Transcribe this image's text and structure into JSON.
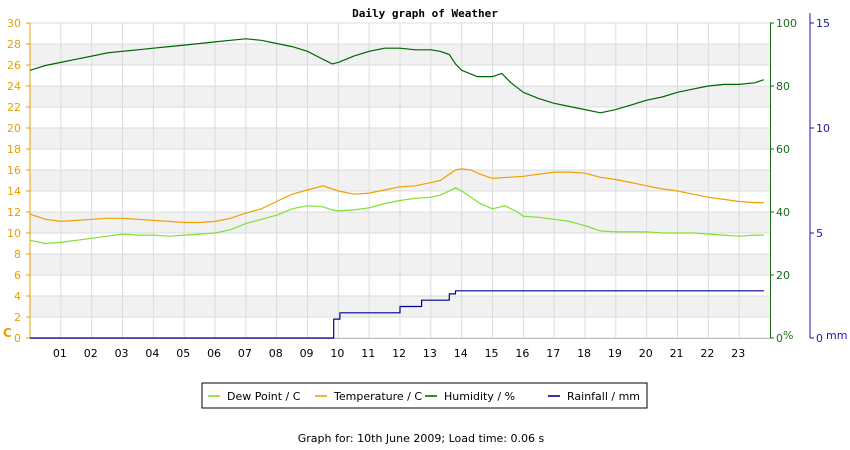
{
  "chart_data": {
    "type": "line",
    "title": "Daily graph of Weather",
    "x_ticks": [
      "01",
      "02",
      "03",
      "04",
      "05",
      "06",
      "07",
      "08",
      "09",
      "10",
      "11",
      "12",
      "13",
      "14",
      "15",
      "16",
      "17",
      "18",
      "19",
      "20",
      "21",
      "22",
      "23"
    ],
    "xlim": [
      0,
      24
    ],
    "left_axis": {
      "unit": "C",
      "ylim": [
        0,
        30
      ],
      "ticks": [
        0,
        2,
        4,
        6,
        8,
        10,
        12,
        14,
        16,
        18,
        20,
        22,
        24,
        26,
        28,
        30
      ]
    },
    "middle_axis": {
      "unit": "%",
      "ylim": [
        0,
        100
      ],
      "ticks": [
        0,
        20,
        40,
        60,
        80,
        100
      ]
    },
    "right_axis": {
      "unit": "mm",
      "ylim": [
        0,
        15
      ],
      "ticks": [
        0,
        5,
        10,
        15
      ]
    },
    "grid": true,
    "legend_position": "bottom",
    "series": [
      {
        "name": "Dew Point / C",
        "axis": "left",
        "color": "#7ee030",
        "x": [
          0,
          0.5,
          1,
          1.5,
          2,
          2.5,
          3,
          3.5,
          4,
          4.5,
          5,
          5.5,
          6,
          6.5,
          7,
          7.5,
          8,
          8.5,
          9,
          9.5,
          9.8,
          10,
          10.5,
          11,
          11.5,
          12,
          12.5,
          13,
          13.3,
          13.6,
          13.8,
          14,
          14.3,
          14.6,
          15,
          15.4,
          15.8,
          16,
          16.5,
          17,
          17.5,
          18,
          18.5,
          19,
          19.5,
          20,
          20.5,
          21,
          21.5,
          22,
          22.5,
          23,
          23.5,
          23.8
        ],
        "y": [
          9.3,
          9.0,
          9.1,
          9.3,
          9.5,
          9.7,
          9.9,
          9.8,
          9.8,
          9.7,
          9.8,
          9.9,
          10.0,
          10.3,
          10.9,
          11.3,
          11.7,
          12.3,
          12.6,
          12.5,
          12.2,
          12.1,
          12.2,
          12.4,
          12.8,
          13.1,
          13.3,
          13.4,
          13.6,
          14.0,
          14.3,
          14.0,
          13.4,
          12.8,
          12.3,
          12.6,
          12.0,
          11.6,
          11.5,
          11.3,
          11.1,
          10.7,
          10.2,
          10.1,
          10.1,
          10.1,
          10.0,
          10.0,
          10.0,
          9.9,
          9.8,
          9.7,
          9.8,
          9.8
        ]
      },
      {
        "name": "Temperature / C",
        "axis": "left",
        "color": "#f0a000",
        "x": [
          0,
          0.5,
          1,
          1.5,
          2,
          2.5,
          3,
          3.5,
          4,
          4.5,
          5,
          5.5,
          6,
          6.5,
          7,
          7.5,
          8,
          8.5,
          9,
          9.5,
          10,
          10.5,
          11,
          11.5,
          12,
          12.5,
          13,
          13.3,
          13.6,
          13.8,
          14,
          14.3,
          14.6,
          15,
          15.5,
          16,
          16.5,
          17,
          17.5,
          18,
          18.5,
          19,
          19.5,
          20,
          20.5,
          21,
          21.5,
          22,
          22.5,
          23,
          23.5,
          23.8
        ],
        "y": [
          11.8,
          11.3,
          11.1,
          11.2,
          11.3,
          11.4,
          11.4,
          11.3,
          11.2,
          11.1,
          11.0,
          11.0,
          11.1,
          11.4,
          11.9,
          12.3,
          13.0,
          13.7,
          14.1,
          14.5,
          14.0,
          13.7,
          13.8,
          14.1,
          14.4,
          14.5,
          14.8,
          15.0,
          15.6,
          16.0,
          16.1,
          16.0,
          15.6,
          15.2,
          15.3,
          15.4,
          15.6,
          15.8,
          15.8,
          15.7,
          15.3,
          15.1,
          14.8,
          14.5,
          14.2,
          14.0,
          13.7,
          13.4,
          13.2,
          13.0,
          12.9,
          12.9
        ]
      },
      {
        "name": "Humidity / %",
        "axis": "middle",
        "color": "#006600",
        "x": [
          0,
          0.5,
          1,
          1.5,
          2,
          2.5,
          3,
          3.5,
          4,
          4.5,
          5,
          5.5,
          6,
          6.5,
          7,
          7.5,
          8,
          8.5,
          9,
          9.3,
          9.6,
          9.8,
          10,
          10.5,
          11,
          11.5,
          12,
          12.5,
          13,
          13.3,
          13.6,
          13.8,
          14,
          14.5,
          15,
          15.3,
          15.6,
          16,
          16.5,
          17,
          17.5,
          18,
          18.5,
          19,
          19.5,
          20,
          20.5,
          21,
          21.5,
          22,
          22.5,
          23,
          23.5,
          23.8
        ],
        "y": [
          85.0,
          86.5,
          87.5,
          88.5,
          89.5,
          90.5,
          91.0,
          91.5,
          92.0,
          92.5,
          93.0,
          93.5,
          94.0,
          94.5,
          95.0,
          94.5,
          93.5,
          92.5,
          91.0,
          89.5,
          88.0,
          87.0,
          87.5,
          89.5,
          91.0,
          92.0,
          92.0,
          91.5,
          91.5,
          91.0,
          90.0,
          87.0,
          85.0,
          83.0,
          83.0,
          84.0,
          81.0,
          78.0,
          76.0,
          74.5,
          73.5,
          72.5,
          71.5,
          72.5,
          74.0,
          75.5,
          76.5,
          78.0,
          79.0,
          80.0,
          80.5,
          80.5,
          81.0,
          82.0
        ]
      },
      {
        "name": "Rainfall / mm",
        "axis": "right",
        "color": "#00008b",
        "step": true,
        "x": [
          0,
          9.85,
          10.05,
          12.0,
          12.7,
          13.6,
          13.8,
          23.8
        ],
        "y": [
          0,
          0.9,
          1.2,
          1.5,
          1.8,
          2.1,
          2.25,
          2.25
        ]
      }
    ]
  },
  "footer": {
    "text": "Graph for: 10th June 2009; Load time: 0.06 s"
  }
}
